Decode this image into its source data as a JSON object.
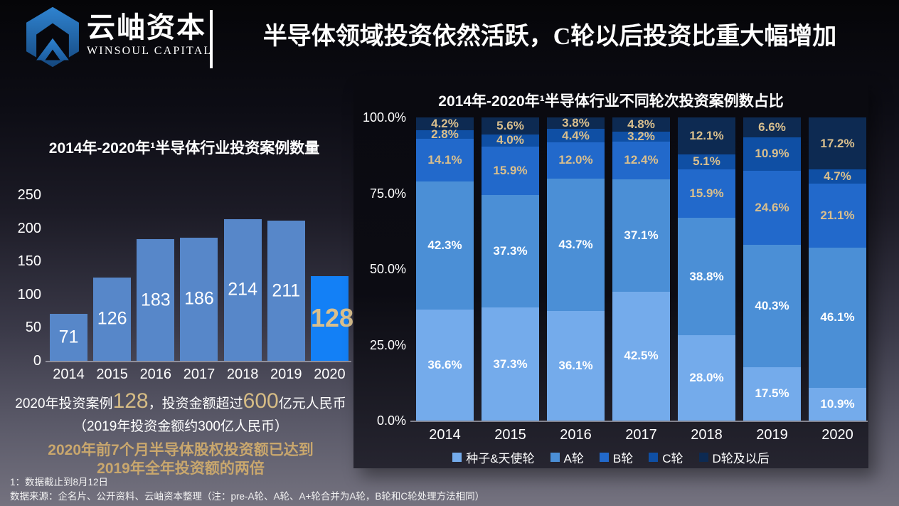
{
  "header": {
    "logo_cn": "云岫资本",
    "logo_en": "WINSOUL CAPITAL",
    "title": "半导体领域投资依然活跃，C轮以后投资比重大幅增加"
  },
  "summary": {
    "l1a": "2020年投资案例 ",
    "l1b": "128",
    "l1c": "，投资金额超过 ",
    "l1d": "600",
    "l1e": "亿元人民币",
    "l2": "（2019年投资金额约300亿人民币）",
    "l3": "2020年前7个月半导体股权投资额已达到",
    "l4": "2019年全年投资额的两倍"
  },
  "footnotes": [
    "1：数据截止到8月12日",
    "数据来源：企名片、公开资料、云岫资本整理（注：pre-A轮、A轮、A+轮合并为A轮，B轮和C轮处理方法相同）"
  ],
  "colors": {
    "gold_label": "#D9BF8D",
    "gold_number": "#D6BC85",
    "gold_headline": "#C9A76D",
    "bar_normal": "#5787C9",
    "bar_highlight": "#1380F6",
    "axis_line": "#9b9ba6"
  },
  "chart_data": [
    {
      "type": "bar",
      "title": "2014年-2020年¹半导体行业投资案例数量",
      "categories": [
        "2014",
        "2015",
        "2016",
        "2017",
        "2018",
        "2019",
        "2020"
      ],
      "values": [
        71,
        126,
        183,
        186,
        214,
        211,
        128
      ],
      "ylim": [
        0,
        250
      ],
      "yticks": [
        0,
        50,
        100,
        150,
        200,
        250
      ],
      "highlight_index": 6,
      "bar_color": "#5787C9",
      "highlight_color": "#1380F6",
      "label_color": "#FFFFFF",
      "highlight_label_color": "#D9BF8D",
      "grid": false,
      "legend": "none"
    },
    {
      "type": "bar",
      "subtype": "stacked-100pct",
      "title": "2014年-2020年¹半导体行业不同轮次投资案例数占比",
      "categories": [
        "2014",
        "2015",
        "2016",
        "2017",
        "2018",
        "2019",
        "2020"
      ],
      "series": [
        {
          "name": "种子&天使轮",
          "color": "#74ABEB",
          "label_color": "#FFFFFF",
          "values": [
            36.6,
            37.3,
            36.1,
            42.5,
            28.0,
            17.5,
            10.9
          ]
        },
        {
          "name": "A轮",
          "color": "#4B8FD6",
          "label_color": "#FFFFFF",
          "values": [
            42.3,
            37.3,
            43.7,
            37.1,
            38.8,
            40.3,
            46.1
          ]
        },
        {
          "name": "B轮",
          "color": "#2269CB",
          "label_color": "#D9BF8D",
          "values": [
            14.1,
            15.9,
            12.0,
            12.4,
            15.9,
            24.6,
            21.1
          ]
        },
        {
          "name": "C轮",
          "color": "#0F4FA4",
          "label_color": "#D9BF8D",
          "values": [
            2.8,
            4.0,
            4.4,
            3.2,
            5.1,
            10.9,
            4.7
          ]
        },
        {
          "name": "D轮及以后",
          "color": "#0D2A52",
          "label_color": "#D9BF8D",
          "values": [
            4.2,
            5.6,
            3.8,
            4.8,
            12.1,
            6.6,
            17.2
          ]
        }
      ],
      "ylim": [
        0,
        100
      ],
      "yticks": [
        0,
        25,
        50,
        75,
        100
      ],
      "ytick_labels": [
        "0.0%",
        "25.0%",
        "50.0%",
        "75.0%",
        "100.0%"
      ],
      "grid": false,
      "legend_position": "bottom"
    }
  ]
}
